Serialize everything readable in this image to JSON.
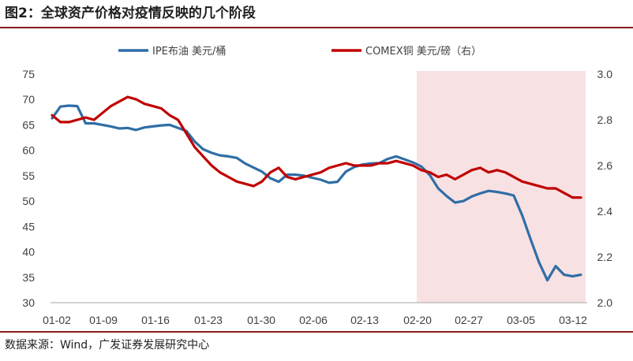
{
  "header": {
    "title": "图2：全球资产价格对疫情反映的几个阶段"
  },
  "footer": {
    "source": "数据来源：Wind，广发证券发展研究中心"
  },
  "colors": {
    "brent": "#2f6ea6",
    "copper": "#c00000",
    "shade": "#f8e1e3",
    "rule": "#8b1a1a"
  },
  "chart_data": {
    "type": "line",
    "title": "",
    "xlabel": "",
    "ylabel": "",
    "x_tick_labels": [
      "01-02",
      "01-09",
      "01-16",
      "01-23",
      "01-30",
      "02-06",
      "02-13",
      "02-20",
      "02-27",
      "03-05",
      "03-12"
    ],
    "ylim_left": [
      30,
      75
    ],
    "yticks_left": [
      "75",
      "70",
      "65",
      "60",
      "55",
      "50",
      "45",
      "40",
      "35",
      "30"
    ],
    "ylim_right": [
      2.0,
      3.0
    ],
    "yticks_right": [
      "3.0",
      "2.8",
      "2.6",
      "2.4",
      "2.2",
      "2.0"
    ],
    "legend_position": "top",
    "shaded_region": {
      "from": "02-20",
      "to": "03-12"
    },
    "series": [
      {
        "name": "IPE布油 美元/桶",
        "axis": "left",
        "color": "#2f6ea6",
        "values": [
          66.3,
          68.6,
          68.8,
          68.7,
          65.3,
          65.3,
          65.0,
          64.7,
          64.3,
          64.4,
          64.0,
          64.5,
          64.7,
          64.9,
          65.0,
          64.4,
          63.8,
          61.7,
          60.2,
          59.5,
          59.0,
          58.8,
          58.5,
          57.4,
          56.6,
          55.8,
          54.5,
          53.8,
          55.2,
          55.2,
          55.0,
          54.6,
          54.2,
          53.6,
          53.8,
          55.8,
          56.7,
          57.2,
          57.4,
          57.5,
          58.3,
          58.8,
          58.2,
          57.6,
          56.8,
          55.1,
          52.5,
          51.0,
          49.7,
          50.0,
          50.9,
          51.5,
          52.0,
          51.8,
          51.5,
          51.1,
          47.2,
          42.5,
          38.0,
          34.4,
          37.2,
          35.5,
          35.2,
          35.5
        ]
      },
      {
        "name": "COMEX铜 美元/磅（右）",
        "axis": "right",
        "color": "#c00000",
        "values": [
          2.82,
          2.79,
          2.79,
          2.8,
          2.81,
          2.8,
          2.83,
          2.86,
          2.88,
          2.9,
          2.89,
          2.87,
          2.86,
          2.85,
          2.82,
          2.8,
          2.74,
          2.68,
          2.64,
          2.6,
          2.57,
          2.55,
          2.53,
          2.52,
          2.51,
          2.53,
          2.57,
          2.59,
          2.55,
          2.54,
          2.55,
          2.56,
          2.57,
          2.59,
          2.6,
          2.61,
          2.6,
          2.6,
          2.6,
          2.61,
          2.61,
          2.62,
          2.61,
          2.6,
          2.58,
          2.57,
          2.55,
          2.56,
          2.54,
          2.56,
          2.58,
          2.59,
          2.57,
          2.58,
          2.57,
          2.55,
          2.53,
          2.52,
          2.51,
          2.5,
          2.5,
          2.48,
          2.46,
          2.46
        ]
      }
    ]
  }
}
